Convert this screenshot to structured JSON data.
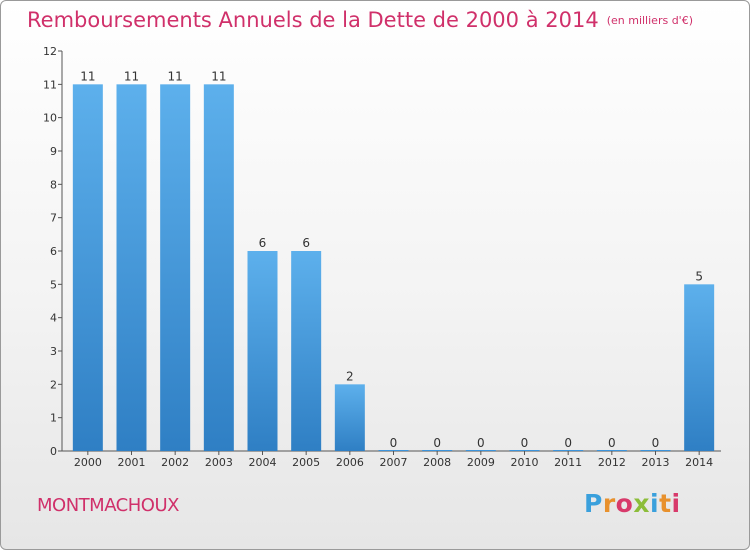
{
  "chart_data": {
    "type": "bar",
    "title": "Remboursements Annuels de la Dette de 2000 à 2014",
    "subtitle": "(en milliers d'€)",
    "categories": [
      "2000",
      "2001",
      "2002",
      "2003",
      "2004",
      "2005",
      "2006",
      "2007",
      "2008",
      "2009",
      "2010",
      "2011",
      "2012",
      "2013",
      "2014"
    ],
    "values": [
      11,
      11,
      11,
      11,
      6,
      6,
      2,
      0,
      0,
      0,
      0,
      0,
      0,
      0,
      5
    ],
    "xlabel": "",
    "ylabel": "",
    "ylim": [
      0,
      12
    ],
    "yticks": [
      0,
      1,
      2,
      3,
      4,
      5,
      6,
      7,
      8,
      9,
      10,
      11,
      12
    ],
    "grid": false,
    "bar_color": "#3d94db",
    "bar_color_light": "#5db0ec"
  },
  "commune": "MONTMACHOUX",
  "logo": {
    "letters": [
      "P",
      "r",
      "o",
      "x",
      "i",
      "t",
      "i"
    ],
    "colors": [
      "#3aa0dc",
      "#e8912d",
      "#d83a6b",
      "#8cbd3a",
      "#3aa0dc",
      "#e8912d",
      "#d83a6b"
    ]
  }
}
